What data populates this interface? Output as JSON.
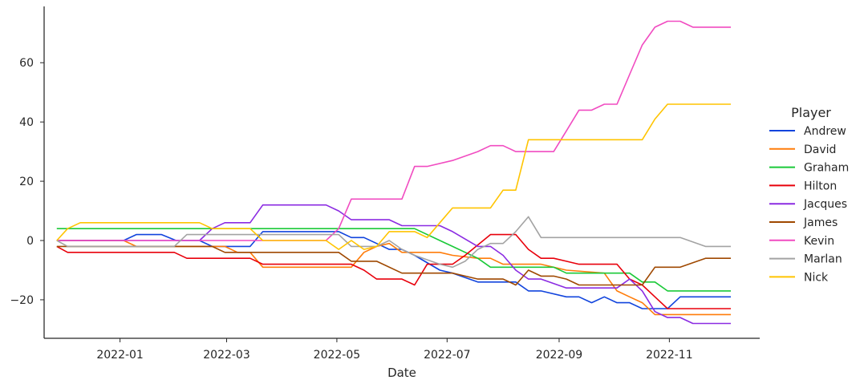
{
  "chart_data": {
    "type": "line",
    "xlabel": "Date",
    "ylabel": "",
    "xlim": [
      "2021-11-20",
      "2022-12-21"
    ],
    "ylim": [
      -33,
      79
    ],
    "xticks": [
      {
        "value": "2022-01-01",
        "label": "2022-01"
      },
      {
        "value": "2022-03-01",
        "label": "2022-03"
      },
      {
        "value": "2022-05-01",
        "label": "2022-05"
      },
      {
        "value": "2022-07-01",
        "label": "2022-07"
      },
      {
        "value": "2022-09-01",
        "label": "2022-09"
      },
      {
        "value": "2022-11-01",
        "label": "2022-11"
      }
    ],
    "yticks": [
      -20,
      0,
      20,
      40,
      60
    ],
    "grid": false,
    "legend": {
      "title": "Player",
      "placement": "right"
    },
    "series": [
      {
        "name": "Andrew",
        "color": "#1144dd",
        "points": [
          [
            "2021-11-27",
            0
          ],
          [
            "2021-12-03",
            0
          ],
          [
            "2022-01-03",
            0
          ],
          [
            "2022-01-10",
            2
          ],
          [
            "2022-01-24",
            2
          ],
          [
            "2022-02-01",
            0
          ],
          [
            "2022-02-14",
            0
          ],
          [
            "2022-02-21",
            -2
          ],
          [
            "2022-03-14",
            -2
          ],
          [
            "2022-03-21",
            3
          ],
          [
            "2022-05-02",
            3
          ],
          [
            "2022-05-09",
            1
          ],
          [
            "2022-05-16",
            1
          ],
          [
            "2022-05-23",
            -1
          ],
          [
            "2022-05-30",
            -3
          ],
          [
            "2022-06-06",
            -3
          ],
          [
            "2022-06-13",
            -5
          ],
          [
            "2022-06-27",
            -10
          ],
          [
            "2022-07-04",
            -11
          ],
          [
            "2022-07-18",
            -14
          ],
          [
            "2022-07-25",
            -14
          ],
          [
            "2022-08-08",
            -14
          ],
          [
            "2022-08-15",
            -17
          ],
          [
            "2022-08-22",
            -17
          ],
          [
            "2022-09-05",
            -19
          ],
          [
            "2022-09-12",
            -19
          ],
          [
            "2022-09-19",
            -21
          ],
          [
            "2022-09-26",
            -19
          ],
          [
            "2022-10-03",
            -21
          ],
          [
            "2022-10-10",
            -21
          ],
          [
            "2022-10-17",
            -23
          ],
          [
            "2022-10-24",
            -23
          ],
          [
            "2022-10-31",
            -23
          ],
          [
            "2022-11-07",
            -19
          ],
          [
            "2022-12-05",
            -19
          ]
        ]
      },
      {
        "name": "David",
        "color": "#ff7c0a",
        "points": [
          [
            "2021-11-27",
            0
          ],
          [
            "2021-12-03",
            0
          ],
          [
            "2022-01-03",
            0
          ],
          [
            "2022-01-10",
            -2
          ],
          [
            "2022-02-28",
            -2
          ],
          [
            "2022-03-07",
            -4
          ],
          [
            "2022-03-14",
            -4
          ],
          [
            "2022-03-21",
            -9
          ],
          [
            "2022-04-25",
            -9
          ],
          [
            "2022-05-09",
            -9
          ],
          [
            "2022-05-16",
            -4
          ],
          [
            "2022-05-23",
            -2
          ],
          [
            "2022-05-30",
            -1
          ],
          [
            "2022-06-06",
            -4
          ],
          [
            "2022-06-27",
            -4
          ],
          [
            "2022-07-04",
            -5
          ],
          [
            "2022-07-18",
            -6
          ],
          [
            "2022-07-25",
            -6
          ],
          [
            "2022-08-01",
            -8
          ],
          [
            "2022-08-15",
            -8
          ],
          [
            "2022-08-22",
            -8
          ],
          [
            "2022-09-05",
            -10
          ],
          [
            "2022-09-26",
            -11
          ],
          [
            "2022-10-03",
            -17
          ],
          [
            "2022-10-10",
            -19
          ],
          [
            "2022-10-17",
            -21
          ],
          [
            "2022-10-24",
            -25
          ],
          [
            "2022-12-05",
            -25
          ]
        ]
      },
      {
        "name": "Graham",
        "color": "#1ac938",
        "points": [
          [
            "2021-11-27",
            4
          ],
          [
            "2022-06-13",
            4
          ],
          [
            "2022-06-27",
            0
          ],
          [
            "2022-07-04",
            -2
          ],
          [
            "2022-07-18",
            -6
          ],
          [
            "2022-07-25",
            -9
          ],
          [
            "2022-08-15",
            -9
          ],
          [
            "2022-08-22",
            -9
          ],
          [
            "2022-08-29",
            -9
          ],
          [
            "2022-09-05",
            -11
          ],
          [
            "2022-09-26",
            -11
          ],
          [
            "2022-10-10",
            -11
          ],
          [
            "2022-10-17",
            -14
          ],
          [
            "2022-10-24",
            -14
          ],
          [
            "2022-10-31",
            -17
          ],
          [
            "2022-12-05",
            -17
          ]
        ]
      },
      {
        "name": "Hilton",
        "color": "#e8000b",
        "points": [
          [
            "2021-11-27",
            -2
          ],
          [
            "2021-12-03",
            -4
          ],
          [
            "2022-01-31",
            -4
          ],
          [
            "2022-02-07",
            -6
          ],
          [
            "2022-03-14",
            -6
          ],
          [
            "2022-03-21",
            -8
          ],
          [
            "2022-04-25",
            -8
          ],
          [
            "2022-05-09",
            -8
          ],
          [
            "2022-05-16",
            -10
          ],
          [
            "2022-05-23",
            -13
          ],
          [
            "2022-06-06",
            -13
          ],
          [
            "2022-06-13",
            -15
          ],
          [
            "2022-06-20",
            -8
          ],
          [
            "2022-06-27",
            -8
          ],
          [
            "2022-07-04",
            -8
          ],
          [
            "2022-07-11",
            -5
          ],
          [
            "2022-07-25",
            2
          ],
          [
            "2022-08-08",
            2
          ],
          [
            "2022-08-15",
            -3
          ],
          [
            "2022-08-22",
            -6
          ],
          [
            "2022-08-29",
            -6
          ],
          [
            "2022-09-05",
            -7
          ],
          [
            "2022-09-12",
            -8
          ],
          [
            "2022-10-03",
            -8
          ],
          [
            "2022-10-10",
            -13
          ],
          [
            "2022-10-17",
            -15
          ],
          [
            "2022-10-24",
            -19
          ],
          [
            "2022-10-31",
            -23
          ],
          [
            "2022-12-05",
            -23
          ]
        ]
      },
      {
        "name": "Jacques",
        "color": "#8b2be2",
        "points": [
          [
            "2021-11-27",
            0
          ],
          [
            "2021-12-03",
            0
          ],
          [
            "2022-02-07",
            0
          ],
          [
            "2022-02-14",
            0
          ],
          [
            "2022-02-21",
            4
          ],
          [
            "2022-02-28",
            6
          ],
          [
            "2022-03-14",
            6
          ],
          [
            "2022-03-21",
            12
          ],
          [
            "2022-04-25",
            12
          ],
          [
            "2022-05-02",
            10
          ],
          [
            "2022-05-09",
            7
          ],
          [
            "2022-05-30",
            7
          ],
          [
            "2022-06-06",
            5
          ],
          [
            "2022-06-27",
            5
          ],
          [
            "2022-07-04",
            3
          ],
          [
            "2022-07-18",
            -2
          ],
          [
            "2022-07-25",
            -2
          ],
          [
            "2022-08-01",
            -5
          ],
          [
            "2022-08-08",
            -10
          ],
          [
            "2022-08-15",
            -13
          ],
          [
            "2022-08-22",
            -13
          ],
          [
            "2022-09-05",
            -16
          ],
          [
            "2022-10-03",
            -16
          ],
          [
            "2022-10-10",
            -13
          ],
          [
            "2022-10-17",
            -17
          ],
          [
            "2022-10-24",
            -24
          ],
          [
            "2022-10-31",
            -26
          ],
          [
            "2022-11-07",
            -26
          ],
          [
            "2022-11-14",
            -28
          ],
          [
            "2022-12-05",
            -28
          ]
        ]
      },
      {
        "name": "James",
        "color": "#9f4800",
        "points": [
          [
            "2021-11-27",
            -2
          ],
          [
            "2022-02-21",
            -2
          ],
          [
            "2022-02-28",
            -4
          ],
          [
            "2022-03-21",
            -4
          ],
          [
            "2022-05-02",
            -4
          ],
          [
            "2022-05-09",
            -7
          ],
          [
            "2022-05-23",
            -7
          ],
          [
            "2022-06-06",
            -11
          ],
          [
            "2022-07-04",
            -11
          ],
          [
            "2022-07-11",
            -12
          ],
          [
            "2022-07-18",
            -13
          ],
          [
            "2022-08-01",
            -13
          ],
          [
            "2022-08-08",
            -15
          ],
          [
            "2022-08-15",
            -10
          ],
          [
            "2022-08-22",
            -12
          ],
          [
            "2022-08-29",
            -12
          ],
          [
            "2022-09-05",
            -13
          ],
          [
            "2022-09-12",
            -15
          ],
          [
            "2022-10-10",
            -15
          ],
          [
            "2022-10-17",
            -15
          ],
          [
            "2022-10-24",
            -9
          ],
          [
            "2022-11-07",
            -9
          ],
          [
            "2022-11-21",
            -6
          ],
          [
            "2022-12-05",
            -6
          ]
        ]
      },
      {
        "name": "Kevin",
        "color": "#f14cc1",
        "points": [
          [
            "2021-11-27",
            0
          ],
          [
            "2022-04-25",
            0
          ],
          [
            "2022-05-02",
            4
          ],
          [
            "2022-05-09",
            14
          ],
          [
            "2022-06-06",
            14
          ],
          [
            "2022-06-13",
            25
          ],
          [
            "2022-06-20",
            25
          ],
          [
            "2022-07-04",
            27
          ],
          [
            "2022-07-18",
            30
          ],
          [
            "2022-07-25",
            32
          ],
          [
            "2022-08-01",
            32
          ],
          [
            "2022-08-08",
            30
          ],
          [
            "2022-08-29",
            30
          ],
          [
            "2022-09-05",
            37
          ],
          [
            "2022-09-12",
            44
          ],
          [
            "2022-09-19",
            44
          ],
          [
            "2022-09-26",
            46
          ],
          [
            "2022-10-03",
            46
          ],
          [
            "2022-10-10",
            56
          ],
          [
            "2022-10-17",
            66
          ],
          [
            "2022-10-24",
            72
          ],
          [
            "2022-10-31",
            74
          ],
          [
            "2022-11-07",
            74
          ],
          [
            "2022-11-14",
            72
          ],
          [
            "2022-12-05",
            72
          ]
        ]
      },
      {
        "name": "Marlan",
        "color": "#a3a3a3",
        "points": [
          [
            "2021-11-27",
            0
          ],
          [
            "2021-12-03",
            -2
          ],
          [
            "2022-01-31",
            -2
          ],
          [
            "2022-02-07",
            2
          ],
          [
            "2022-02-14",
            2
          ],
          [
            "2022-04-25",
            2
          ],
          [
            "2022-05-02",
            2
          ],
          [
            "2022-05-09",
            -2
          ],
          [
            "2022-05-23",
            -2
          ],
          [
            "2022-05-30",
            0
          ],
          [
            "2022-06-06",
            -3
          ],
          [
            "2022-06-13",
            -5
          ],
          [
            "2022-06-27",
            -8
          ],
          [
            "2022-07-04",
            -9
          ],
          [
            "2022-07-11",
            -7
          ],
          [
            "2022-07-18",
            -3
          ],
          [
            "2022-07-25",
            -1
          ],
          [
            "2022-08-01",
            -1
          ],
          [
            "2022-08-08",
            3
          ],
          [
            "2022-08-15",
            8
          ],
          [
            "2022-08-22",
            1
          ],
          [
            "2022-08-29",
            1
          ],
          [
            "2022-10-24",
            1
          ],
          [
            "2022-11-07",
            1
          ],
          [
            "2022-11-21",
            -2
          ],
          [
            "2022-12-05",
            -2
          ]
        ]
      },
      {
        "name": "Nick",
        "color": "#ffc400",
        "points": [
          [
            "2021-11-27",
            0
          ],
          [
            "2021-12-03",
            4
          ],
          [
            "2021-12-10",
            6
          ],
          [
            "2022-01-31",
            6
          ],
          [
            "2022-02-14",
            6
          ],
          [
            "2022-02-21",
            4
          ],
          [
            "2022-03-14",
            4
          ],
          [
            "2022-03-21",
            0
          ],
          [
            "2022-04-25",
            0
          ],
          [
            "2022-05-02",
            -3
          ],
          [
            "2022-05-09",
            0
          ],
          [
            "2022-05-16",
            -3
          ],
          [
            "2022-05-23",
            -2
          ],
          [
            "2022-05-30",
            3
          ],
          [
            "2022-06-06",
            3
          ],
          [
            "2022-06-13",
            3
          ],
          [
            "2022-06-20",
            1
          ],
          [
            "2022-06-27",
            6
          ],
          [
            "2022-07-04",
            11
          ],
          [
            "2022-07-18",
            11
          ],
          [
            "2022-07-25",
            11
          ],
          [
            "2022-08-01",
            17
          ],
          [
            "2022-08-08",
            17
          ],
          [
            "2022-08-15",
            34
          ],
          [
            "2022-08-22",
            34
          ],
          [
            "2022-10-10",
            34
          ],
          [
            "2022-10-17",
            34
          ],
          [
            "2022-10-24",
            41
          ],
          [
            "2022-10-31",
            46
          ],
          [
            "2022-12-05",
            46
          ]
        ]
      }
    ]
  }
}
